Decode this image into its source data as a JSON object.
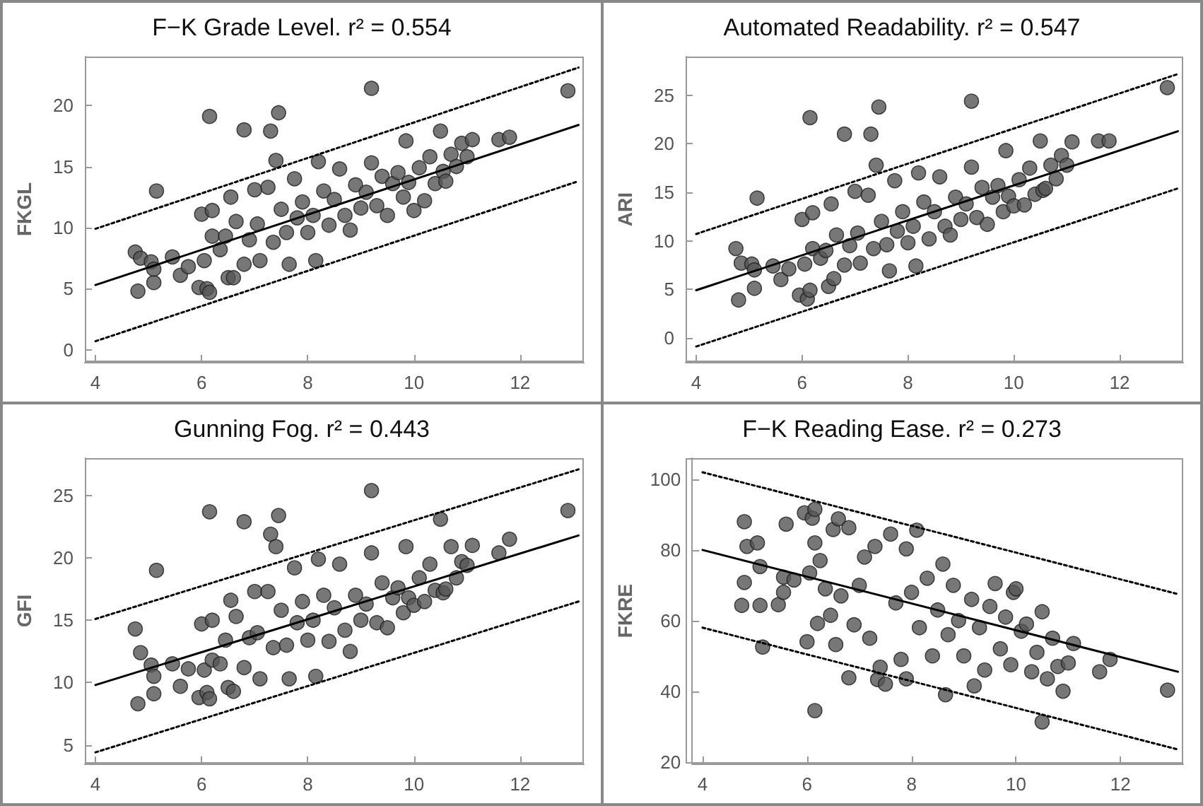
{
  "chart_data": [
    {
      "type": "scatter",
      "title": "F−K Grade Level. r² = 0.554",
      "ylabel": "FKGL",
      "xlim": [
        3.8,
        13.2
      ],
      "xticks": [
        4,
        6,
        8,
        10,
        12
      ],
      "ylim": [
        -1,
        24
      ],
      "yticks": [
        0,
        5,
        10,
        15,
        20
      ],
      "grid": false,
      "series": [
        {
          "color": "#555555",
          "marker": "circle",
          "x": [
            4.75,
            4.8,
            4.85,
            5.05,
            5.1,
            5.1,
            5.15,
            5.45,
            5.6,
            5.75,
            5.95,
            6.0,
            6.05,
            6.1,
            6.15,
            6.15,
            6.2,
            6.2,
            6.35,
            6.45,
            6.5,
            6.55,
            6.6,
            6.65,
            6.8,
            6.8,
            6.9,
            7.0,
            7.05,
            7.1,
            7.25,
            7.3,
            7.35,
            7.4,
            7.45,
            7.5,
            7.6,
            7.65,
            7.75,
            7.8,
            7.9,
            8.0,
            8.1,
            8.15,
            8.2,
            8.3,
            8.4,
            8.5,
            8.6,
            8.7,
            8.8,
            8.9,
            9.0,
            9.1,
            9.2,
            9.2,
            9.3,
            9.4,
            9.5,
            9.6,
            9.7,
            9.8,
            9.85,
            9.9,
            10.0,
            10.1,
            10.2,
            10.3,
            10.4,
            10.5,
            10.55,
            10.6,
            10.7,
            10.8,
            10.9,
            11.0,
            11.1,
            11.6,
            11.8,
            12.9
          ],
          "values": [
            8.0,
            4.8,
            7.5,
            7.2,
            5.5,
            6.6,
            13.0,
            7.6,
            6.1,
            6.8,
            5.1,
            11.1,
            7.3,
            5.0,
            19.1,
            4.7,
            11.4,
            9.3,
            8.2,
            9.3,
            5.9,
            12.5,
            5.9,
            10.5,
            18.0,
            7.0,
            9.0,
            13.1,
            10.3,
            7.3,
            13.3,
            17.9,
            8.8,
            15.5,
            19.4,
            11.5,
            9.6,
            7.0,
            14.0,
            10.8,
            12.1,
            9.6,
            11.0,
            7.3,
            15.4,
            13.0,
            10.2,
            12.3,
            14.8,
            11.0,
            9.8,
            13.5,
            11.6,
            12.9,
            21.4,
            15.3,
            11.8,
            14.2,
            11.0,
            13.6,
            14.5,
            12.5,
            17.1,
            13.7,
            11.4,
            14.9,
            12.2,
            15.8,
            13.6,
            17.9,
            14.6,
            13.8,
            16.0,
            15.0,
            16.9,
            15.8,
            17.2,
            17.2,
            17.4,
            21.2
          ]
        },
        {
          "type": "line",
          "color": "#000000",
          "line_style": "solid",
          "x": [
            4,
            13.1
          ],
          "values": [
            5.3,
            18.4
          ]
        },
        {
          "type": "line",
          "color": "#000000",
          "line_style": "dotted",
          "x": [
            4,
            13.1
          ],
          "values": [
            9.9,
            23.1
          ]
        },
        {
          "type": "line",
          "color": "#000000",
          "line_style": "dotted",
          "x": [
            4,
            13.1
          ],
          "values": [
            0.7,
            13.8
          ]
        }
      ]
    },
    {
      "type": "scatter",
      "title": "Automated Readability. r² = 0.547",
      "ylabel": "ARI",
      "xlim": [
        3.8,
        13.2
      ],
      "xticks": [
        4,
        6,
        8,
        10,
        12
      ],
      "ylim": [
        -2.5,
        29
      ],
      "yticks": [
        0,
        5,
        10,
        15,
        20,
        25
      ],
      "grid": false,
      "series": [
        {
          "color": "#555555",
          "marker": "circle",
          "x": [
            4.75,
            4.8,
            4.85,
            5.05,
            5.1,
            5.1,
            5.15,
            5.45,
            5.6,
            5.75,
            5.95,
            6.0,
            6.05,
            6.1,
            6.15,
            6.15,
            6.2,
            6.2,
            6.35,
            6.45,
            6.5,
            6.55,
            6.6,
            6.65,
            6.8,
            6.8,
            6.9,
            7.0,
            7.05,
            7.1,
            7.25,
            7.3,
            7.35,
            7.4,
            7.45,
            7.5,
            7.6,
            7.65,
            7.75,
            7.8,
            7.9,
            8.0,
            8.1,
            8.15,
            8.2,
            8.3,
            8.4,
            8.5,
            8.6,
            8.7,
            8.8,
            8.9,
            9.0,
            9.1,
            9.2,
            9.2,
            9.3,
            9.4,
            9.5,
            9.6,
            9.7,
            9.8,
            9.85,
            9.9,
            10.0,
            10.1,
            10.2,
            10.3,
            10.4,
            10.5,
            10.55,
            10.6,
            10.7,
            10.8,
            10.9,
            11.0,
            11.1,
            11.6,
            11.8,
            12.9
          ],
          "values": [
            9.2,
            3.9,
            7.7,
            7.6,
            5.1,
            7.0,
            14.4,
            7.4,
            6.0,
            7.1,
            4.4,
            12.2,
            7.6,
            4.0,
            22.7,
            4.9,
            12.9,
            9.2,
            8.2,
            9.0,
            5.3,
            13.8,
            6.1,
            10.6,
            21.0,
            7.5,
            9.5,
            15.1,
            10.8,
            7.7,
            14.7,
            21.0,
            9.2,
            17.8,
            23.8,
            12.0,
            9.6,
            6.9,
            16.2,
            11.0,
            13.0,
            9.8,
            11.5,
            7.4,
            17.0,
            14.0,
            10.2,
            13.0,
            16.6,
            11.5,
            10.6,
            14.5,
            12.2,
            13.8,
            24.4,
            17.6,
            12.4,
            15.5,
            11.7,
            14.5,
            15.7,
            13.0,
            19.3,
            14.6,
            13.6,
            16.3,
            13.7,
            17.5,
            14.8,
            20.3,
            15.2,
            15.4,
            17.8,
            16.4,
            18.8,
            17.8,
            20.2,
            20.3,
            20.3,
            25.8
          ]
        },
        {
          "type": "line",
          "color": "#000000",
          "line_style": "solid",
          "x": [
            4,
            13.1
          ],
          "values": [
            4.9,
            21.3
          ]
        },
        {
          "type": "line",
          "color": "#000000",
          "line_style": "dotted",
          "x": [
            4,
            13.1
          ],
          "values": [
            10.7,
            27.2
          ]
        },
        {
          "type": "line",
          "color": "#000000",
          "line_style": "dotted",
          "x": [
            4,
            13.1
          ],
          "values": [
            -0.9,
            15.4
          ]
        }
      ]
    },
    {
      "type": "scatter",
      "title": "Gunning Fog. r² = 0.443",
      "ylabel": "GFI",
      "xlim": [
        3.8,
        13.2
      ],
      "xticks": [
        4,
        6,
        8,
        10,
        12
      ],
      "ylim": [
        3.5,
        28
      ],
      "yticks": [
        5,
        10,
        15,
        20,
        25
      ],
      "grid": false,
      "series": [
        {
          "color": "#555555",
          "marker": "circle",
          "x": [
            4.75,
            4.8,
            4.85,
            5.05,
            5.1,
            5.1,
            5.15,
            5.45,
            5.6,
            5.75,
            5.95,
            6.0,
            6.05,
            6.1,
            6.15,
            6.15,
            6.2,
            6.2,
            6.35,
            6.45,
            6.5,
            6.55,
            6.6,
            6.65,
            6.8,
            6.8,
            6.9,
            7.0,
            7.05,
            7.1,
            7.25,
            7.3,
            7.35,
            7.4,
            7.45,
            7.5,
            7.6,
            7.65,
            7.75,
            7.8,
            7.9,
            8.0,
            8.1,
            8.15,
            8.2,
            8.3,
            8.4,
            8.5,
            8.6,
            8.7,
            8.8,
            8.9,
            9.0,
            9.1,
            9.2,
            9.2,
            9.3,
            9.4,
            9.5,
            9.6,
            9.7,
            9.8,
            9.85,
            9.9,
            10.0,
            10.1,
            10.2,
            10.3,
            10.4,
            10.5,
            10.55,
            10.6,
            10.7,
            10.8,
            10.9,
            11.0,
            11.1,
            11.6,
            11.8,
            12.9
          ],
          "values": [
            14.3,
            8.3,
            12.4,
            11.4,
            9.1,
            10.5,
            19.0,
            11.5,
            9.7,
            11.1,
            8.8,
            14.7,
            11.0,
            9.2,
            23.7,
            8.7,
            15.0,
            11.8,
            11.5,
            13.4,
            9.6,
            16.6,
            9.3,
            15.3,
            22.9,
            11.2,
            13.6,
            17.3,
            14.0,
            10.3,
            17.3,
            21.9,
            12.8,
            20.9,
            23.4,
            15.8,
            13.0,
            10.3,
            19.2,
            14.8,
            16.5,
            13.4,
            15.0,
            10.5,
            19.9,
            17.0,
            13.3,
            16.0,
            19.5,
            14.2,
            12.5,
            17.0,
            15.0,
            16.3,
            25.4,
            20.4,
            14.8,
            18.0,
            14.4,
            16.8,
            17.6,
            15.6,
            20.9,
            16.8,
            16.2,
            18.4,
            16.5,
            19.5,
            17.4,
            23.1,
            17.2,
            17.5,
            20.9,
            18.4,
            19.7,
            19.4,
            21.0,
            20.4,
            21.5,
            23.8
          ]
        },
        {
          "type": "line",
          "color": "#000000",
          "line_style": "solid",
          "x": [
            4,
            13.1
          ],
          "values": [
            9.8,
            21.8
          ]
        },
        {
          "type": "line",
          "color": "#000000",
          "line_style": "dotted",
          "x": [
            4,
            13.1
          ],
          "values": [
            15.1,
            27.1
          ]
        },
        {
          "type": "line",
          "color": "#000000",
          "line_style": "dotted",
          "x": [
            4,
            13.1
          ],
          "values": [
            4.4,
            16.5
          ]
        }
      ]
    },
    {
      "type": "scatter",
      "title": "F−K Reading Ease. r² = 0.273",
      "ylabel": "FKRE",
      "xlim": [
        3.8,
        13.2
      ],
      "xticks": [
        4,
        6,
        8,
        10,
        12
      ],
      "ylim": [
        19.5,
        106
      ],
      "yticks": [
        20,
        40,
        60,
        80,
        100
      ],
      "grid": false,
      "series": [
        {
          "color": "#555555",
          "marker": "circle",
          "x": [
            4.75,
            4.8,
            4.8,
            4.85,
            5.05,
            5.1,
            5.1,
            5.15,
            5.45,
            5.55,
            5.6,
            5.55,
            5.75,
            5.95,
            6.0,
            6.05,
            6.1,
            6.15,
            6.15,
            6.15,
            6.2,
            6.25,
            6.35,
            6.45,
            6.5,
            6.55,
            6.6,
            6.65,
            6.8,
            6.8,
            6.9,
            7.0,
            7.1,
            7.2,
            7.3,
            7.35,
            7.4,
            7.5,
            7.6,
            7.7,
            7.8,
            7.9,
            7.9,
            8.0,
            8.1,
            8.15,
            8.3,
            8.4,
            8.5,
            8.6,
            8.65,
            8.7,
            8.8,
            8.9,
            9.0,
            9.15,
            9.2,
            9.3,
            9.4,
            9.5,
            9.6,
            9.7,
            9.8,
            9.9,
            9.95,
            10.0,
            10.1,
            10.2,
            10.3,
            10.4,
            10.5,
            10.5,
            10.6,
            10.7,
            10.8,
            10.9,
            11.0,
            11.1,
            11.6,
            11.8,
            12.9
          ],
          "values": [
            64.3,
            88,
            70.8,
            81,
            82,
            75.3,
            64.3,
            52.5,
            64.5,
            72.3,
            87.3,
            68,
            71.5,
            90.5,
            54,
            73.5,
            89,
            91.5,
            34.5,
            82,
            59.2,
            77,
            69,
            61.5,
            85.8,
            53.2,
            88.8,
            67,
            86.3,
            43.8,
            58.8,
            70,
            78,
            55,
            81,
            43.3,
            46.8,
            42,
            84.5,
            65,
            49,
            80.3,
            43.5,
            68,
            85.6,
            58,
            72,
            50,
            63,
            76,
            39,
            56,
            70,
            60,
            50,
            66,
            41.5,
            58,
            46,
            64,
            70.5,
            52,
            61,
            47.5,
            68,
            69,
            57,
            59,
            45.5,
            51,
            31.3,
            62.5,
            43.5,
            55,
            47,
            40,
            48,
            53.5,
            45.5,
            49,
            40.3
          ]
        },
        {
          "type": "line",
          "color": "#000000",
          "line_style": "solid",
          "x": [
            4,
            13.1
          ],
          "values": [
            80,
            45.5
          ]
        },
        {
          "type": "line",
          "color": "#000000",
          "line_style": "dotted",
          "x": [
            4,
            13.1
          ],
          "values": [
            102,
            67.5
          ]
        },
        {
          "type": "line",
          "color": "#000000",
          "line_style": "dotted",
          "x": [
            4,
            13.1
          ],
          "values": [
            58,
            23.5
          ]
        }
      ]
    }
  ]
}
